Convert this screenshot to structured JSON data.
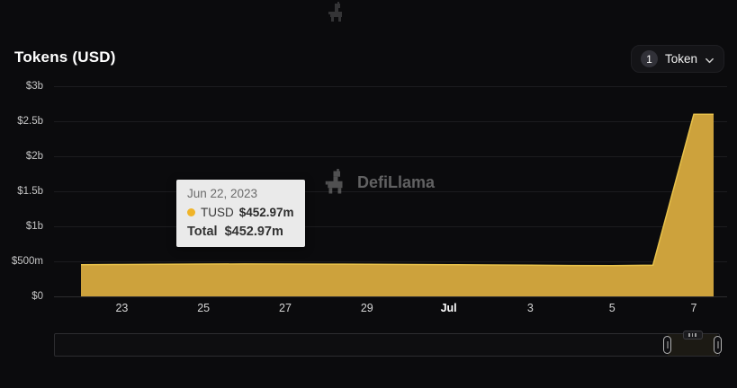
{
  "header": {
    "title": "Tokens (USD)"
  },
  "token_selector": {
    "count": "1",
    "label": "Token"
  },
  "icons": {
    "token_chevron": "chevron-down",
    "top_logo": "defillama-llama",
    "watermark_logo": "defillama-llama",
    "brush_grip": "drag-grip"
  },
  "watermark": {
    "brand": "DefiLlama"
  },
  "tooltip": {
    "date": "Jun 22, 2023",
    "series_name": "TUSD",
    "series_value": "$452.97m",
    "dot_color": "#f0b429",
    "total_label": "Total",
    "total_value": "$452.97m"
  },
  "chart_data": {
    "type": "area",
    "title": "Tokens (USD)",
    "x": [
      "Jun 22",
      "Jun 23",
      "Jun 24",
      "Jun 25",
      "Jun 26",
      "Jun 27",
      "Jun 28",
      "Jun 29",
      "Jun 30",
      "Jul 1",
      "Jul 2",
      "Jul 3",
      "Jul 4",
      "Jul 5",
      "Jul 6",
      "Jul 7"
    ],
    "series": [
      {
        "name": "TUSD",
        "color": "#cda23c",
        "stroke": "#e8c24a",
        "values_millions": [
          452.97,
          455,
          458,
          461,
          463,
          462,
          460,
          458,
          455,
          452,
          449,
          445,
          441,
          438,
          446,
          2600
        ]
      }
    ],
    "x_ticks": [
      {
        "label": "23",
        "idx": 1,
        "bold": false
      },
      {
        "label": "25",
        "idx": 3,
        "bold": false
      },
      {
        "label": "27",
        "idx": 5,
        "bold": false
      },
      {
        "label": "29",
        "idx": 7,
        "bold": false
      },
      {
        "label": "Jul",
        "idx": 9,
        "bold": true
      },
      {
        "label": "3",
        "idx": 11,
        "bold": false
      },
      {
        "label": "5",
        "idx": 13,
        "bold": false
      },
      {
        "label": "7",
        "idx": 15,
        "bold": false
      }
    ],
    "y_tick_labels": [
      "$3b",
      "$2.5b",
      "$2b",
      "$1.5b",
      "$1b",
      "$500m",
      "$0"
    ],
    "y_tick_values_millions": [
      3000,
      2500,
      2000,
      1500,
      1000,
      500,
      0
    ],
    "ylim_millions": [
      0,
      3000
    ],
    "grid": "horizontal",
    "legend": "none"
  }
}
